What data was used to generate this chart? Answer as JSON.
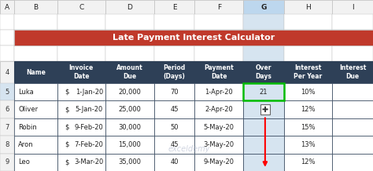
{
  "title": "Late Payment Interest Calculator",
  "title_bg": "#C0392B",
  "title_color": "#FFFFFF",
  "header_bg": "#2E4057",
  "header_color": "#FFFFFF",
  "cell_border": "#2E4057",
  "col_headers": [
    "Name",
    "Invoice\nDate",
    "Amount\nDue",
    "Period\n(Days)",
    "Payment\nDate",
    "Over\nDays",
    "Interest\nPer Year",
    "Interest\nDue"
  ],
  "rows": [
    [
      "Luka",
      "1-Jan-20",
      "20,000",
      "70",
      "1-Apr-20",
      "21",
      "10%",
      ""
    ],
    [
      "Oliver",
      "5-Jan-20",
      "25,000",
      "45",
      "2-Apr-20",
      "",
      "12%",
      ""
    ],
    [
      "Robin",
      "9-Feb-20",
      "30,000",
      "50",
      "5-May-20",
      "",
      "15%",
      ""
    ],
    [
      "Aron",
      "7-Feb-20",
      "15,000",
      "45",
      "3-May-20",
      "",
      "13%",
      ""
    ],
    [
      "Leo",
      "3-Mar-20",
      "35,000",
      "40",
      "9-May-20",
      "",
      "12%",
      ""
    ]
  ],
  "excel_cols": [
    "A",
    "B",
    "C",
    "D",
    "E",
    "F",
    "G",
    "H",
    "I"
  ],
  "grid_color": "#C0C0C0",
  "selected_col_bg": "#D6E4F0",
  "selected_col_header_bg": "#BDD7EE",
  "row_header_bg": "#F2F2F2",
  "white": "#FFFFFF",
  "fig_bg": "#E8E8E8",
  "watermark": "exceldemy",
  "watermark_color": "#B0B8CC"
}
